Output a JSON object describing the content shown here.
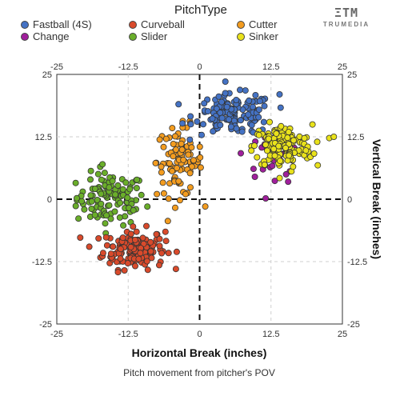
{
  "legend": {
    "title": "PitchType",
    "items": [
      {
        "label": "Fastball (4S)",
        "color": "#4472C4"
      },
      {
        "label": "Curveball",
        "color": "#D94A2B"
      },
      {
        "label": "Cutter",
        "color": "#F39C1F"
      },
      {
        "label": "Change",
        "color": "#A01F9C"
      },
      {
        "label": "Slider",
        "color": "#6AAE2A"
      },
      {
        "label": "Sinker",
        "color": "#E9E21B"
      }
    ]
  },
  "brand": {
    "mark": "ΞTM",
    "name": "TRUMEDIA"
  },
  "chart_data": {
    "type": "scatter",
    "xlabel": "Horizontal Break (inches)",
    "ylabel": "Vertical Break (inches)",
    "caption": "Pitch movement from pitcher's POV",
    "xlim": [
      -25,
      25
    ],
    "ylim": [
      -25,
      25
    ],
    "xticks": [
      "-25",
      "-12.5",
      "0",
      "12.5",
      "25"
    ],
    "yticks": [
      "25",
      "12.5",
      "0",
      "-12.5",
      "-25"
    ],
    "grid": true,
    "series": [
      {
        "name": "Fastball (4S)",
        "color": "#4472C4",
        "center": [
          6.0,
          17.0
        ],
        "spread": [
          3.4,
          2.0
        ],
        "count": 140
      },
      {
        "name": "Curveball",
        "color": "#D94A2B",
        "center": [
          -11.5,
          -10.0
        ],
        "spread": [
          2.7,
          2.0
        ],
        "count": 150
      },
      {
        "name": "Cutter",
        "color": "#F39C1F",
        "center": [
          -3.5,
          7.5
        ],
        "spread": [
          2.0,
          3.5
        ],
        "count": 100
      },
      {
        "name": "Change",
        "color": "#A01F9C",
        "center": [
          13.0,
          9.0
        ],
        "spread": [
          2.5,
          2.2
        ],
        "count": 30
      },
      {
        "name": "Slider",
        "color": "#6AAE2A",
        "center": [
          -15.5,
          0.0
        ],
        "spread": [
          3.0,
          2.6
        ],
        "count": 110
      },
      {
        "name": "Sinker",
        "color": "#E9E21B",
        "center": [
          14.5,
          10.5
        ],
        "spread": [
          2.6,
          2.2
        ],
        "count": 150
      }
    ],
    "outliers": [
      {
        "series": "Sinker",
        "x": 23.5,
        "y": 12.5
      },
      {
        "series": "Fastball (4S)",
        "x": 14.0,
        "y": 21.0
      },
      {
        "series": "Slider",
        "x": -21.5,
        "y": 0.2
      },
      {
        "series": "Slider",
        "x": -17.0,
        "y": 7.0
      },
      {
        "series": "Change",
        "x": 15.5,
        "y": 3.5
      }
    ]
  }
}
